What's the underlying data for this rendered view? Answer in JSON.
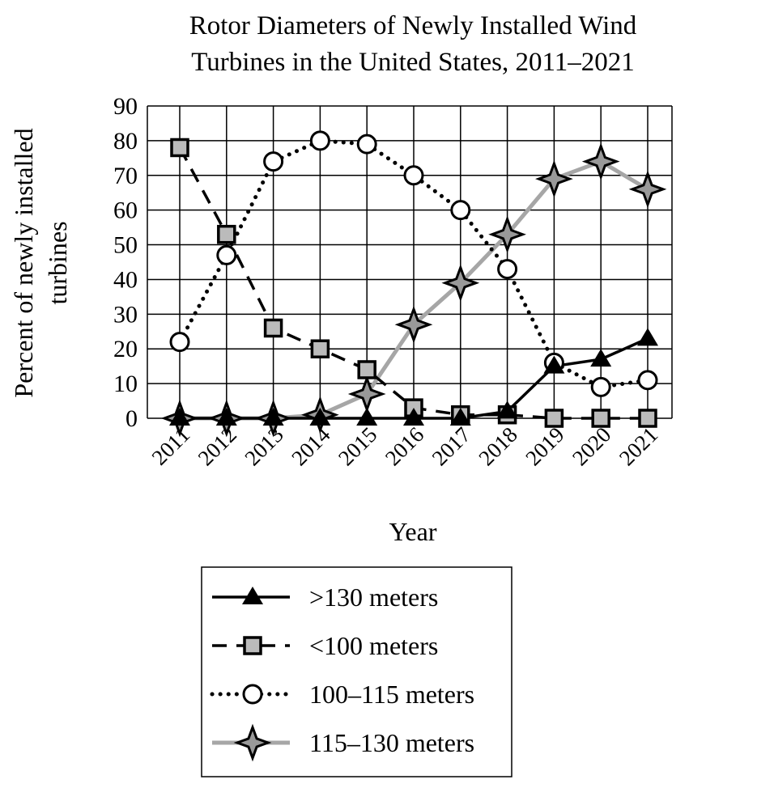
{
  "chart_data": {
    "type": "line",
    "title": [
      "Rotor Diameters of Newly Installed Wind",
      "Turbines in the United States, 2011–2021"
    ],
    "xlabel": "Year",
    "ylabel": [
      "Percent of newly installed",
      "turbines"
    ],
    "categories": [
      "2011",
      "2012",
      "2013",
      "2014",
      "2015",
      "2016",
      "2017",
      "2018",
      "2019",
      "2020",
      "2021"
    ],
    "ylim": [
      0,
      90
    ],
    "yticks": [
      0,
      10,
      20,
      30,
      40,
      50,
      60,
      70,
      80,
      90
    ],
    "grid": true,
    "legend_position": "bottom",
    "series": [
      {
        "name": ">130 meters",
        "style": "solid",
        "marker": "triangle",
        "color": "#000000",
        "fill": "#000000",
        "values": [
          0,
          0,
          0,
          0,
          0,
          0,
          0,
          2,
          15,
          17,
          23
        ]
      },
      {
        "name": "<100 meters",
        "style": "dashed",
        "marker": "square",
        "color": "#000000",
        "fill": "#bbbbbb",
        "values": [
          78,
          53,
          26,
          20,
          14,
          3,
          1,
          1,
          0,
          0,
          0
        ]
      },
      {
        "name": "100–115 meters",
        "style": "dotted",
        "marker": "circle",
        "color": "#000000",
        "fill": "#ffffff",
        "values": [
          22,
          47,
          74,
          80,
          79,
          70,
          60,
          43,
          16,
          9,
          11
        ]
      },
      {
        "name": "115–130 meters",
        "style": "gray",
        "marker": "star",
        "color": "#a6a6a6",
        "fill": "#999999",
        "values": [
          0,
          0,
          0,
          1,
          7,
          27,
          39,
          53,
          69,
          74,
          66
        ]
      }
    ]
  }
}
